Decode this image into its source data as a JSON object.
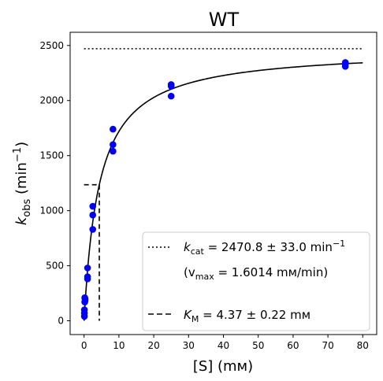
{
  "chart_data": {
    "type": "scatter",
    "title": "WT",
    "xlabel": "[S] (mм)",
    "ylabel_main": "k",
    "ylabel_sub": "obs",
    "ylabel_rest": " (min",
    "ylabel_sup": "−1",
    "ylabel_close": ")",
    "xlim": [
      -4,
      84
    ],
    "ylim": [
      -125,
      2620
    ],
    "xticks": [
      0,
      10,
      20,
      30,
      40,
      50,
      60,
      70,
      80
    ],
    "yticks": [
      0,
      500,
      1000,
      1500,
      2000,
      2500
    ],
    "grid": false,
    "legend_placement": "lower-right",
    "colors": {
      "points": "#0000ff",
      "fit": "#000000",
      "reference": "#000000"
    },
    "observations": {
      "x": [
        0.1,
        0.1,
        0.1,
        0.2,
        0.2,
        0.3,
        0.3,
        1.0,
        1.0,
        1.0,
        2.5,
        2.5,
        2.5,
        8.3,
        8.3,
        8.3,
        25,
        25,
        25,
        75,
        75,
        75
      ],
      "y": [
        40,
        70,
        100,
        170,
        210,
        185,
        200,
        380,
        400,
        480,
        830,
        960,
        1040,
        1540,
        1600,
        1740,
        2040,
        2130,
        2145,
        2310,
        2330,
        2345
      ]
    },
    "fit": {
      "kcat": 2470.8,
      "km": 4.37,
      "x_start": 0,
      "x_end": 80
    },
    "kcat_reference": {
      "y": 2470.8,
      "x_start": 0,
      "x_end": 80
    },
    "km_reference": {
      "x": 4.37,
      "y_top": 1235.4,
      "x_start": 0
    },
    "legend": {
      "kcat_prefix": "k",
      "kcat_sub": "cat",
      "kcat_text": " = 2470.8 ± 33.0 min",
      "kcat_sup": "−1",
      "vmax_open": "(v",
      "vmax_sub": "max",
      "vmax_text": " = 1.6014 mм/min)",
      "km_prefix": "K",
      "km_sub": "M",
      "km_text": " = 4.37 ± 0.22 mм"
    }
  }
}
